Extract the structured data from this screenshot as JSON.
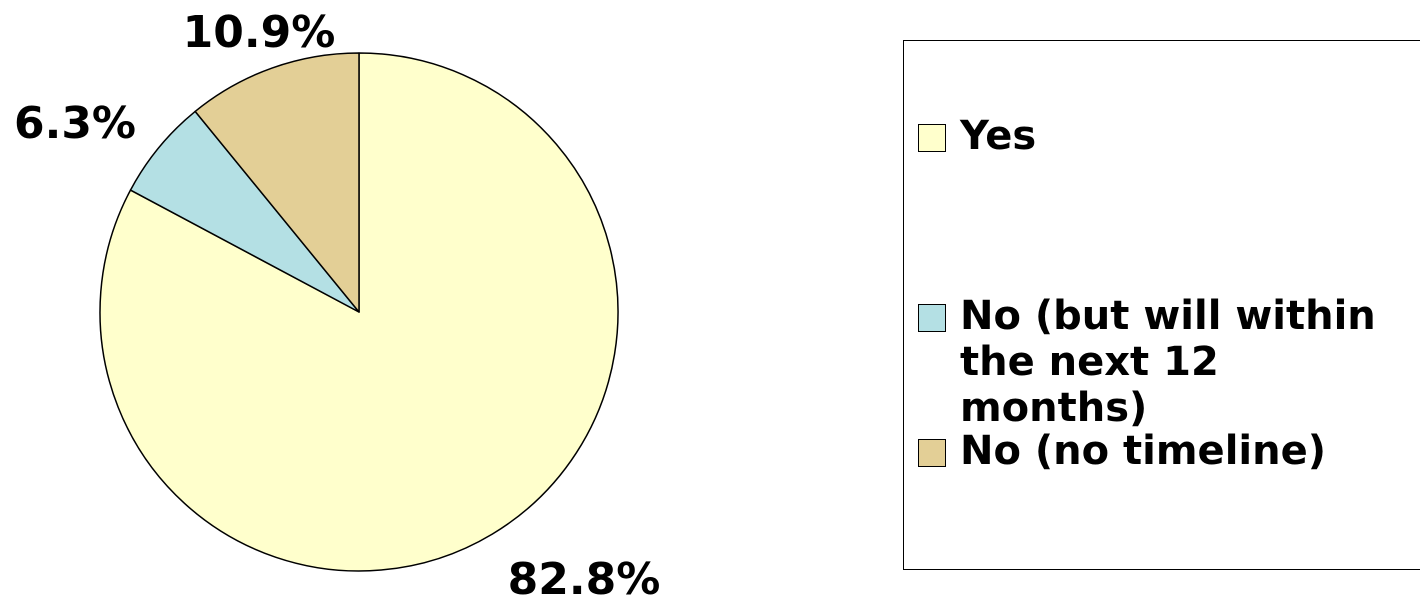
{
  "chart_data": {
    "type": "pie",
    "title": "",
    "slices": [
      {
        "label": "Yes",
        "value": 82.8,
        "value_label": "82.8%",
        "color": "#FFFFCC"
      },
      {
        "label": "No (but will within the next 12 months)",
        "value": 6.3,
        "value_label": "6.3%",
        "color": "#B4E0E4"
      },
      {
        "label": "No (no timeline)",
        "value": 10.9,
        "value_label": "10.9%",
        "color": "#E3CF96"
      }
    ],
    "legend_position": "right",
    "start_angle": "12 o'clock",
    "direction": "clockwise"
  }
}
